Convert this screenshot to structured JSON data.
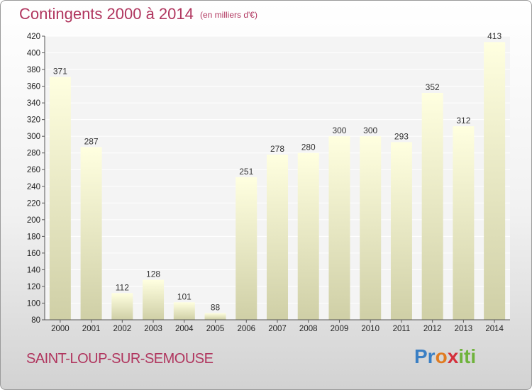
{
  "header": {
    "title": "Contingents 2000 à 2014",
    "subtitle": "(en milliers d'€)"
  },
  "footer": {
    "town": "SAINT-LOUP-SUR-SEMOUSE",
    "logo_parts": [
      "Pr",
      "o",
      "x",
      "iti"
    ]
  },
  "colors": {
    "title": "#b0355e",
    "bar_top": "#ffffe0",
    "bar_bottom": "#cfcfa6",
    "plot_bg": "#f4f4f4",
    "grid": "#ffffff",
    "axis": "#555555"
  },
  "chart_data": {
    "type": "bar",
    "title": "Contingents 2000 à 2014",
    "subtitle": "(en milliers d'€)",
    "xlabel": "",
    "ylabel": "",
    "categories": [
      "2000",
      "2001",
      "2002",
      "2003",
      "2004",
      "2005",
      "2006",
      "2007",
      "2008",
      "2009",
      "2010",
      "2011",
      "2012",
      "2013",
      "2014"
    ],
    "values": [
      371,
      287,
      112,
      128,
      101,
      88,
      251,
      278,
      280,
      300,
      300,
      293,
      352,
      312,
      413
    ],
    "data_labels": [
      "371",
      "287",
      "112",
      "128",
      "101",
      "88",
      "251",
      "278",
      "280",
      "300",
      "300",
      "293",
      "352",
      "312",
      "413"
    ],
    "ylim": [
      80,
      420
    ],
    "yticks": [
      80,
      100,
      120,
      140,
      160,
      180,
      200,
      220,
      240,
      260,
      280,
      300,
      320,
      340,
      360,
      380,
      400,
      420
    ],
    "ytick_labels": [
      "80",
      "100",
      "120",
      "140",
      "160",
      "180",
      "200",
      "220",
      "240",
      "260",
      "280",
      "300",
      "320",
      "340",
      "360",
      "380",
      "400",
      "420"
    ],
    "grid": true,
    "legend": "none"
  }
}
